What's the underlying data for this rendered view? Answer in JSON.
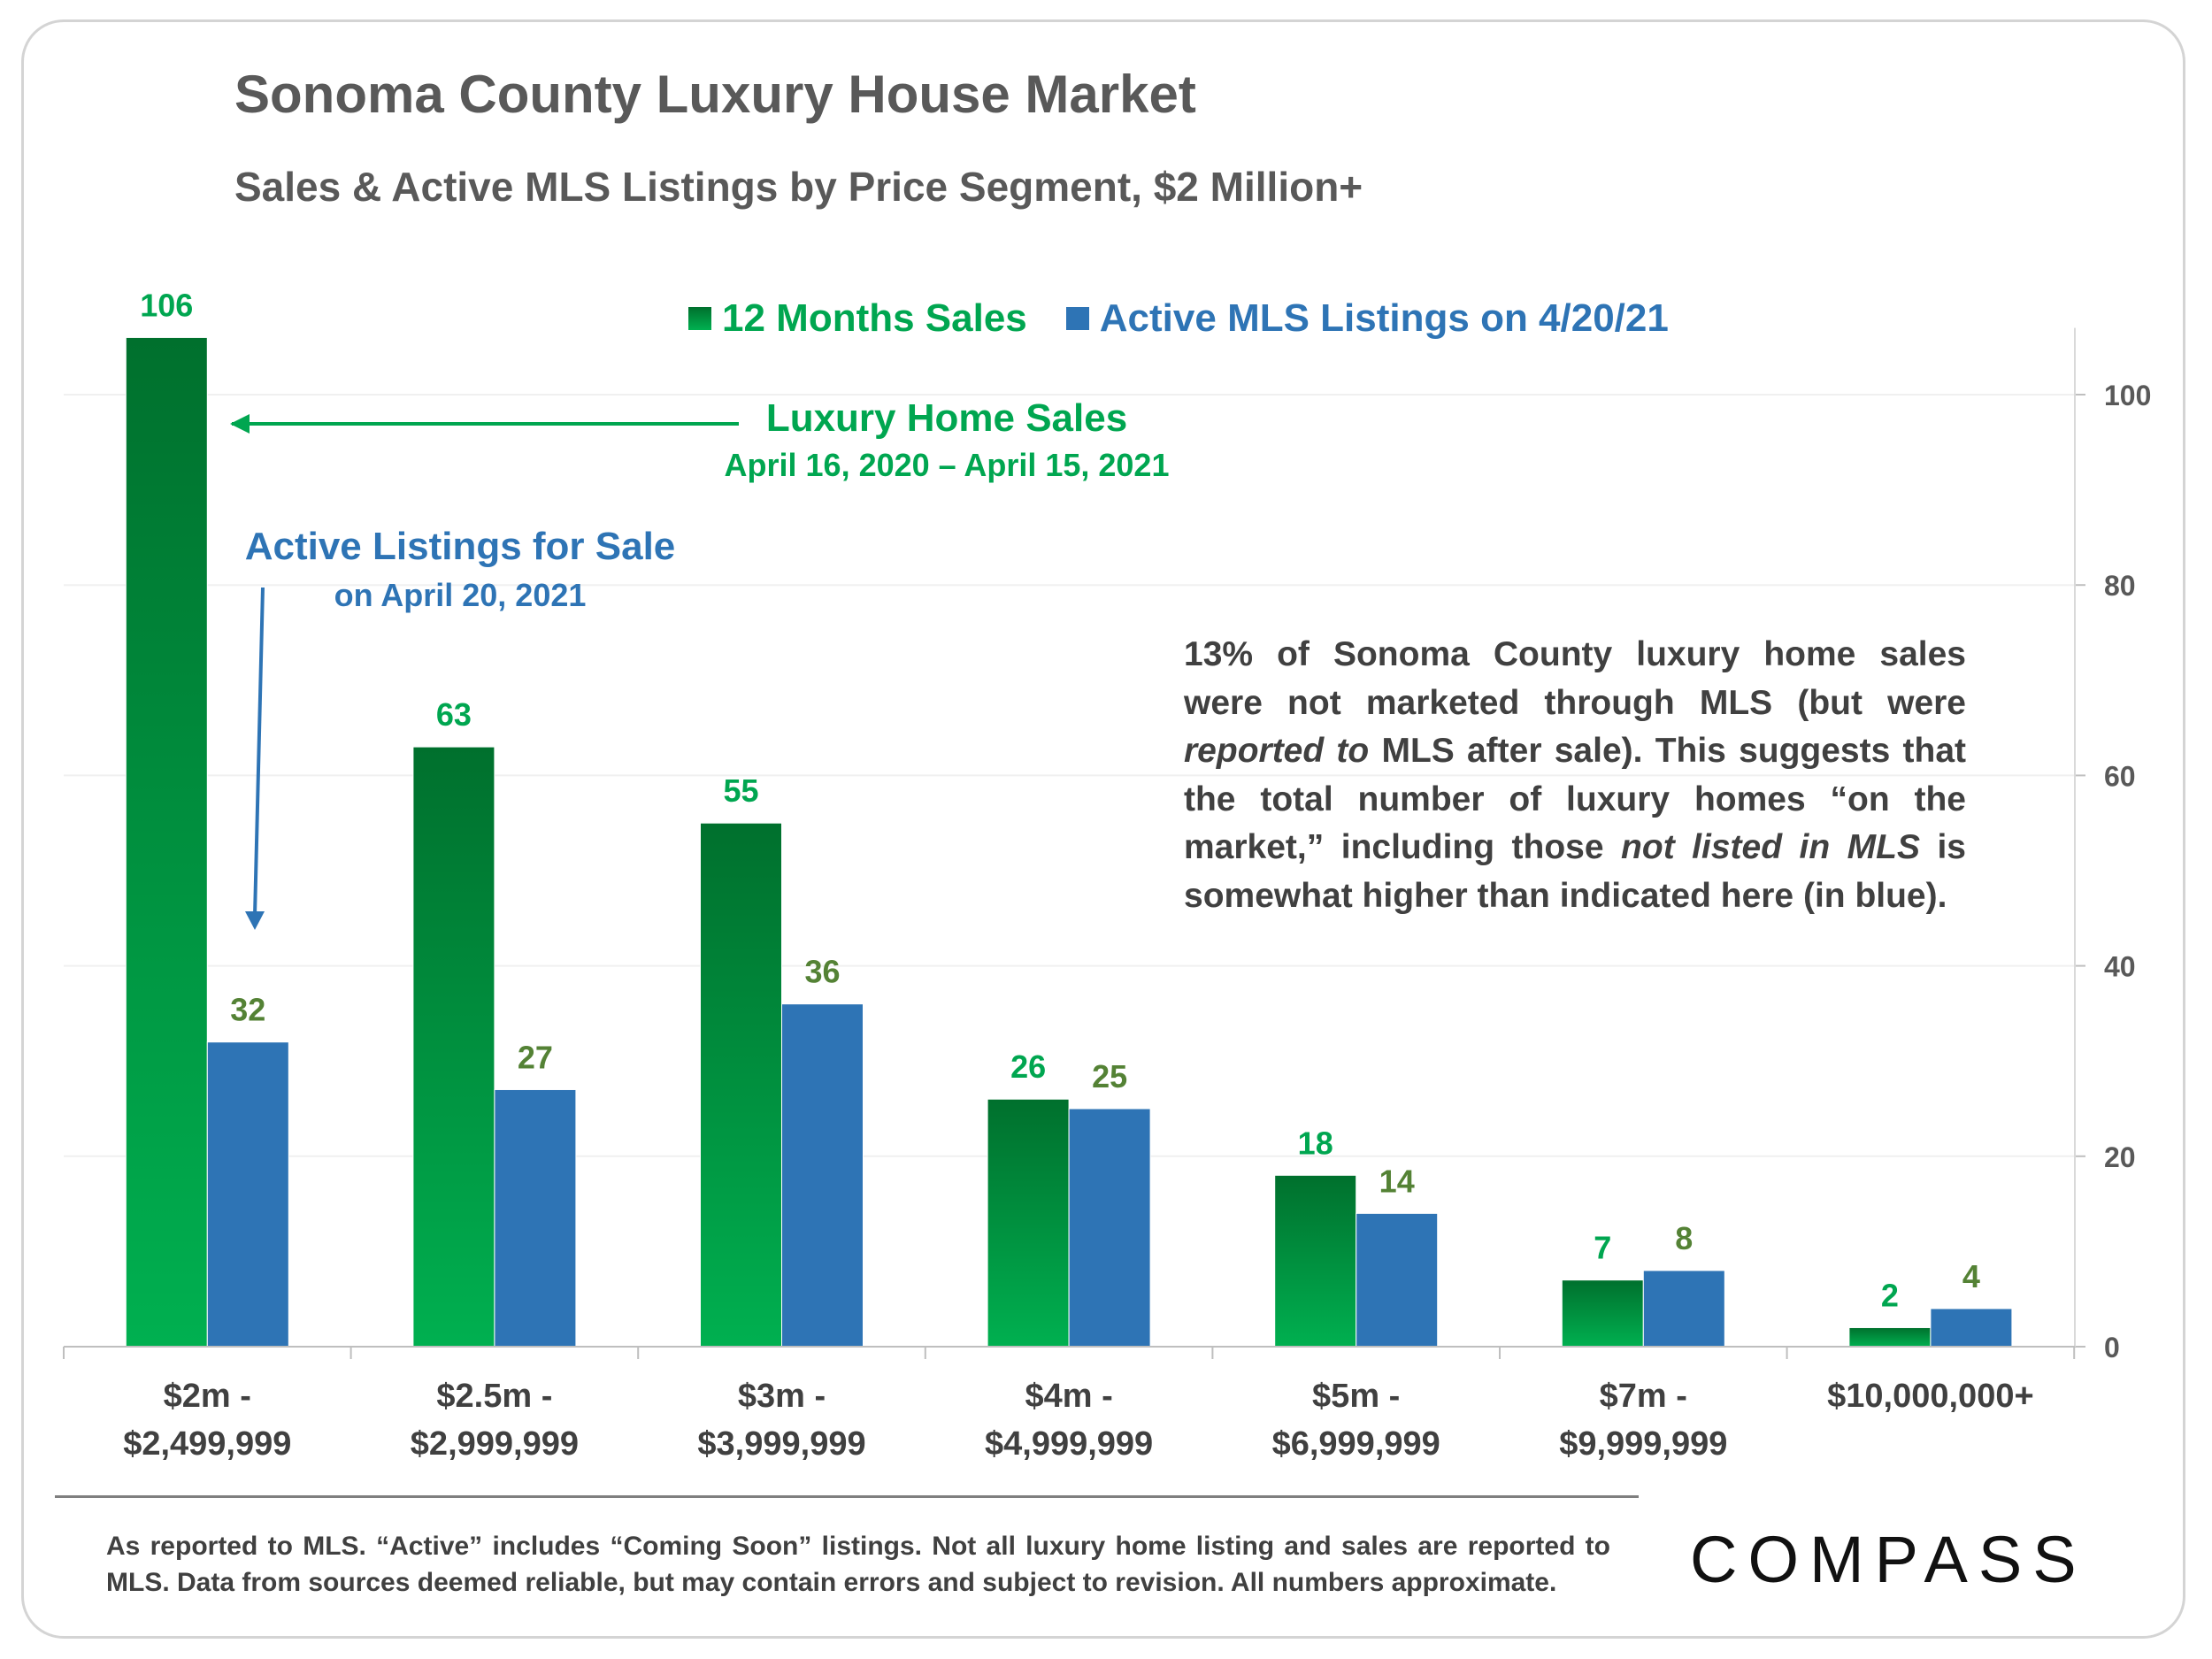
{
  "page": {
    "title": "Sonoma County Luxury House Market",
    "subtitle": "Sales & Active MLS Listings by Price Segment, $2 Million+"
  },
  "legend": {
    "sales": "12 Months Sales",
    "active": "Active MLS Listings on 4/20/21"
  },
  "annotations": {
    "sales_title": "Luxury Home Sales",
    "sales_dates": "April 16, 2020 – April 15, 2021",
    "active_title": "Active Listings for Sale",
    "active_date": "on April 20, 2021"
  },
  "note": {
    "part1": "13% of Sonoma County luxury home sales were not marketed through MLS (but were ",
    "em1": "reported to",
    "part2": " MLS after sale). This suggests that the total number of luxury homes “on the market,” including those ",
    "em2": "not listed in MLS",
    "part3": " is somewhat higher than indicated here (in blue)."
  },
  "footnote": "As reported to MLS. “Active” includes “Coming Soon” listings. Not all luxury home listing and sales are reported to MLS. Data from sources deemed reliable, but may contain errors and subject to revision.  All numbers approximate.",
  "logo": "COMPASS",
  "colors": {
    "sales_top": "#00702d",
    "sales_bottom": "#00b050",
    "active": "#2e74b5",
    "sales_label": "#00a650",
    "active_label": "#548235",
    "axis_text": "#595959",
    "category_text": "#404040",
    "grid": "#f0f0f0"
  },
  "chart_data": {
    "type": "bar",
    "title": "Sonoma County Luxury House Market",
    "subtitle": "Sales & Active MLS Listings by Price Segment, $2 Million+",
    "categories": [
      [
        "$2m -",
        "$2,499,999"
      ],
      [
        "$2.5m -",
        "$2,999,999"
      ],
      [
        "$3m -",
        "$3,999,999"
      ],
      [
        "$4m -",
        "$4,999,999"
      ],
      [
        "$5m -",
        "$6,999,999"
      ],
      [
        "$7m -",
        "$9,999,999"
      ],
      [
        "$10,000,000+"
      ]
    ],
    "series": [
      {
        "name": "12 Months Sales",
        "values": [
          106,
          63,
          55,
          26,
          18,
          7,
          2
        ]
      },
      {
        "name": "Active MLS Listings on 4/20/21",
        "values": [
          32,
          27,
          36,
          25,
          14,
          8,
          4
        ]
      }
    ],
    "y_axis": {
      "position": "right",
      "min": 0,
      "max": 107,
      "ticks": [
        0,
        20,
        40,
        60,
        80,
        100
      ]
    },
    "legend": "top-center",
    "xlabel": "",
    "ylabel": ""
  }
}
